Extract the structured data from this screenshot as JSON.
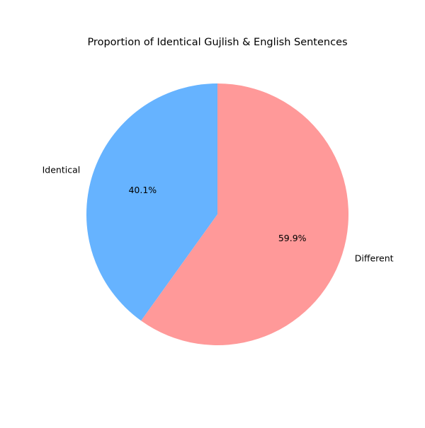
{
  "chart_data": {
    "type": "pie",
    "title": "Proportion of Identical Gujlish & English Sentences",
    "categories": [
      "Identical",
      "Different"
    ],
    "values": [
      40.1,
      59.9
    ],
    "value_labels": [
      "40.1%",
      "59.9%"
    ],
    "colors": [
      "#66b3ff",
      "#ff9999"
    ],
    "start_angle": "top",
    "direction": "counterclockwise",
    "legend": "none"
  }
}
